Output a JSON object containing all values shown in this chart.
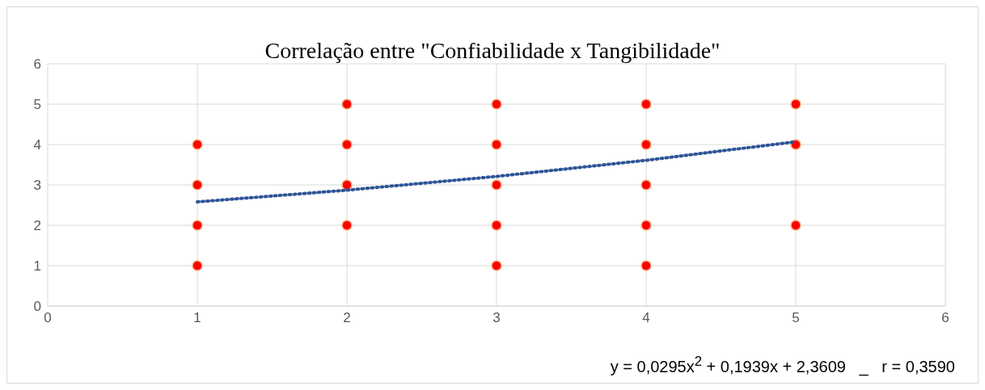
{
  "chart_data": {
    "type": "scatter",
    "title": "Correlação entre \"Confiabilidade x Tangibilidade\"",
    "xlim": [
      0,
      6
    ],
    "xticks": [
      0,
      1,
      2,
      3,
      4,
      5,
      6
    ],
    "ylim": [
      0,
      6
    ],
    "yticks": [
      0,
      1,
      2,
      3,
      4,
      5,
      6
    ],
    "grid": true,
    "legend": false,
    "series": [
      {
        "color": "#ff0000",
        "marker": "circle",
        "x": [
          1,
          1,
          1,
          1,
          2,
          2,
          2,
          2,
          3,
          3,
          3,
          3,
          3,
          4,
          4,
          4,
          4,
          4,
          5,
          5,
          5
        ],
        "values": [
          1,
          2,
          3,
          4,
          2,
          3,
          4,
          5,
          1,
          2,
          3,
          4,
          5,
          1,
          2,
          3,
          4,
          5,
          2,
          4,
          5
        ]
      },
      {
        "type": "line",
        "color": "#2f5597",
        "marker": "none",
        "line_style": "dotted",
        "x": [
          1,
          2,
          3,
          4,
          5
        ],
        "values": [
          2.58,
          2.87,
          3.21,
          3.61,
          4.07
        ]
      }
    ],
    "annotations": [
      "y = 0,0295x$^{2}$ + 0,1939x + 2,3609   _   r = 0,3590"
    ]
  }
}
